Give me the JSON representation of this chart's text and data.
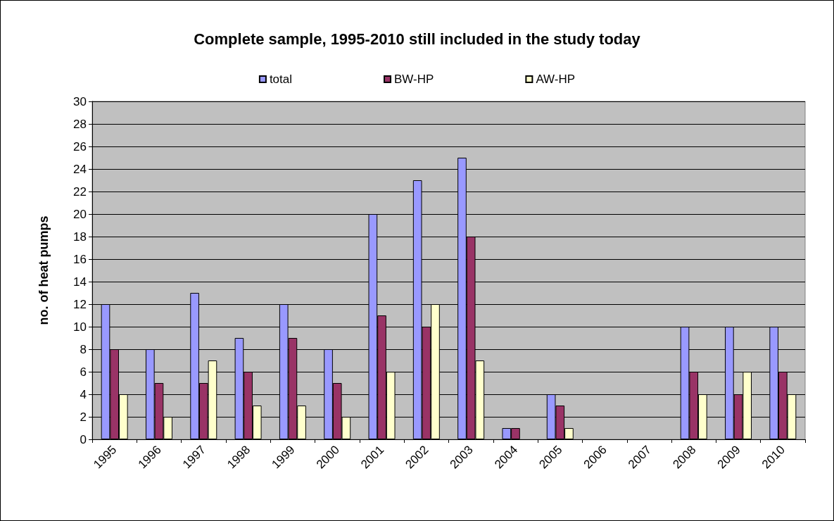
{
  "chart_data": {
    "type": "bar",
    "title": "Complete sample, 1995-2010 still included in the study today",
    "ylabel": "no. of heat pumps",
    "categories": [
      "1995",
      "1996",
      "1997",
      "1998",
      "1999",
      "2000",
      "2001",
      "2002",
      "2003",
      "2004",
      "2005",
      "2006",
      "2007",
      "2008",
      "2009",
      "2010"
    ],
    "series": [
      {
        "name": "total",
        "color": "#9999ff",
        "values": [
          12,
          8,
          13,
          9,
          12,
          8,
          20,
          23,
          25,
          1,
          4,
          null,
          null,
          10,
          10,
          10
        ]
      },
      {
        "name": "BW-HP",
        "color": "#993366",
        "values": [
          8,
          5,
          5,
          6,
          9,
          5,
          11,
          10,
          18,
          1,
          3,
          null,
          null,
          6,
          4,
          6
        ]
      },
      {
        "name": "AW-HP",
        "color": "#ffffcc",
        "values": [
          4,
          2,
          7,
          3,
          3,
          2,
          6,
          12,
          7,
          null,
          1,
          null,
          null,
          4,
          6,
          4
        ]
      }
    ],
    "ylim": [
      0,
      30
    ],
    "yticks": [
      0,
      2,
      4,
      6,
      8,
      10,
      12,
      14,
      16,
      18,
      20,
      22,
      24,
      26,
      28,
      30
    ],
    "grid": "y",
    "legend": "top"
  }
}
